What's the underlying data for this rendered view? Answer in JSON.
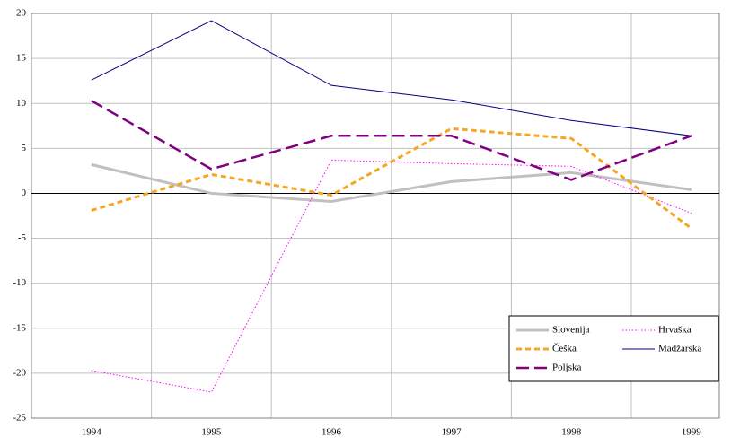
{
  "chart_data": {
    "type": "line",
    "categories": [
      "1994",
      "1995",
      "1996",
      "1997",
      "1998",
      "1999"
    ],
    "series": [
      {
        "name": "Slovenija",
        "color": "#c0c0c0",
        "style": "solid",
        "width": 3,
        "values": [
          3.2,
          0,
          -0.9,
          1.3,
          2.3,
          0.4
        ]
      },
      {
        "name": "Hrvaška",
        "color": "#ff00ff",
        "style": "dotted",
        "width": 1,
        "values": [
          -19.7,
          -22.1,
          3.7,
          3.3,
          3.0,
          -2.2
        ]
      },
      {
        "name": "Češka",
        "color": "#f5a623",
        "style": "dashed",
        "width": 3,
        "values": [
          -1.9,
          2.1,
          -0.2,
          7.2,
          6.1,
          -3.9
        ]
      },
      {
        "name": "Madžarska",
        "color": "#000080",
        "style": "solid",
        "width": 1,
        "values": [
          12.6,
          19.2,
          12.0,
          10.4,
          8.1,
          6.4
        ]
      },
      {
        "name": "Poljska",
        "color": "#800080",
        "style": "longdash",
        "width": 2.5,
        "values": [
          10.3,
          2.7,
          6.4,
          6.4,
          1.5,
          6.4
        ]
      }
    ],
    "ylim": [
      -25,
      20
    ],
    "yticks": [
      -25,
      -20,
      -15,
      -10,
      -5,
      0,
      5,
      10,
      15,
      20
    ],
    "grid": true,
    "legend": "lower right"
  }
}
